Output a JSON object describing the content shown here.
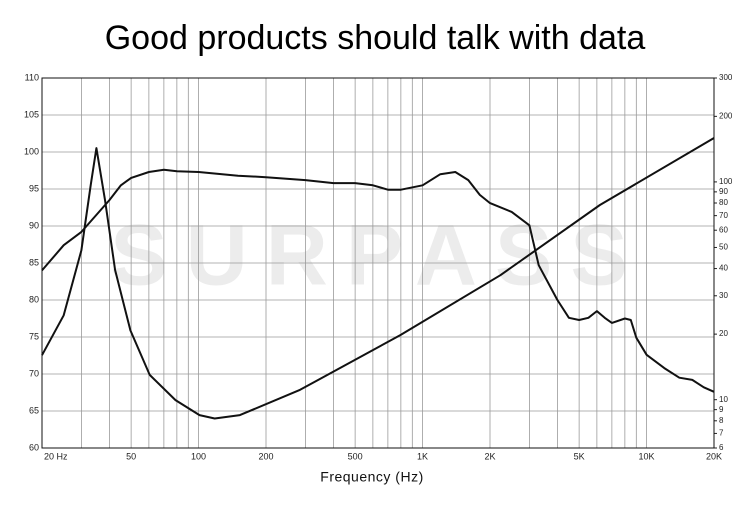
{
  "chart_data": {
    "type": "line",
    "title": "Good products should talk with data",
    "x_label": "Frequency (Hz)",
    "watermark": "SURPASS",
    "xscale": "log",
    "y2scale": "log",
    "grid": true,
    "xlim": [
      20,
      20000
    ],
    "xticks": [
      {
        "value": 20,
        "label": "20 Hz"
      },
      50,
      100,
      200,
      500,
      {
        "value": 1000,
        "label": "1K"
      },
      {
        "value": 2000,
        "label": "2K"
      },
      {
        "value": 5000,
        "label": "5K"
      },
      {
        "value": 10000,
        "label": "10K"
      },
      {
        "value": 20000,
        "label": "20K"
      }
    ],
    "xgrid": [
      20,
      30,
      40,
      50,
      60,
      70,
      80,
      90,
      100,
      200,
      300,
      400,
      500,
      600,
      700,
      800,
      900,
      1000,
      2000,
      3000,
      4000,
      5000,
      6000,
      7000,
      8000,
      9000,
      10000,
      20000
    ],
    "ylim": [
      60,
      110
    ],
    "yticks": [
      60,
      65,
      70,
      75,
      80,
      85,
      90,
      95,
      100,
      105,
      110
    ],
    "y2lim": [
      6,
      300
    ],
    "y2ticks": [
      300,
      200,
      100,
      90,
      80,
      70,
      60,
      50,
      40,
      30,
      20,
      10,
      9,
      8,
      7,
      6
    ],
    "series": [
      {
        "color": "#111111",
        "x": [
          20,
          25,
          30,
          35,
          40,
          45,
          50,
          60,
          70,
          80,
          100,
          150,
          200,
          300,
          400,
          500,
          600,
          700,
          800,
          1000,
          1200,
          1400,
          1600,
          1800,
          2000,
          2500,
          3000,
          3300,
          4000,
          4500,
          5000,
          5500,
          6000,
          6500,
          7000,
          8000,
          8500,
          9000,
          10000,
          12000,
          14000,
          16000,
          18000,
          20000
        ],
        "values": [
          84,
          87.4,
          89.2,
          91.5,
          93.5,
          95.5,
          96.5,
          97.3,
          97.6,
          97.4,
          97.3,
          96.8,
          96.6,
          96.2,
          95.8,
          95.8,
          95.5,
          94.9,
          94.9,
          95.5,
          97,
          97.3,
          96.2,
          94.2,
          93.1,
          91.9,
          90.1,
          84.7,
          80,
          77.6,
          77.3,
          77.6,
          78.5,
          77.6,
          76.9,
          77.5,
          77.3,
          74.9,
          72.6,
          70.8,
          69.5,
          69.2,
          68.2,
          67.6
        ]
      },
      {
        "color": "#111111",
        "axis": "y2",
        "x": [
          20,
          25,
          30,
          33,
          35,
          38.2,
          42.4,
          49.6,
          60.5,
          78.9,
          101,
          118,
          153,
          284,
          795,
          2225,
          6190,
          20000
        ],
        "values": [
          16,
          24.4,
          48.6,
          96.6,
          143,
          82.6,
          39.4,
          20.8,
          13,
          9.96,
          8.5,
          8.2,
          8.5,
          11.1,
          19.8,
          37.3,
          78.3,
          159
        ]
      }
    ]
  }
}
